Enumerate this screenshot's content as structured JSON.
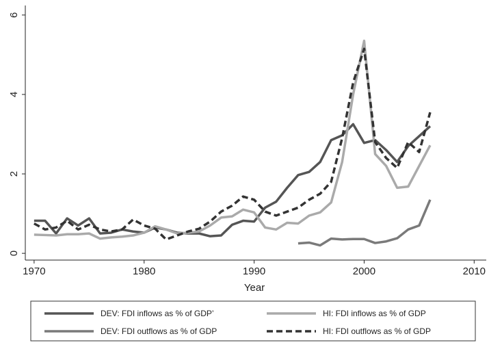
{
  "chart_data": {
    "type": "line",
    "x_label": "Year",
    "x": [
      1970,
      1971,
      1972,
      1973,
      1974,
      1975,
      1976,
      1977,
      1978,
      1979,
      1980,
      1981,
      1982,
      1983,
      1984,
      1985,
      1986,
      1987,
      1988,
      1989,
      1990,
      1991,
      1992,
      1993,
      1994,
      1995,
      1996,
      1997,
      1998,
      1999,
      2000,
      2001,
      2002,
      2003,
      2004,
      2005,
      2006
    ],
    "series": [
      {
        "name": "DEV: FDI inflows as % of GDP’",
        "color": "#555555",
        "dash": false,
        "values": [
          0.82,
          0.82,
          0.5,
          0.88,
          0.7,
          0.88,
          0.5,
          0.52,
          0.6,
          0.55,
          0.52,
          0.65,
          0.6,
          0.52,
          0.5,
          0.5,
          0.43,
          0.45,
          0.72,
          0.82,
          0.8,
          1.15,
          1.3,
          1.65,
          1.97,
          2.05,
          2.3,
          2.85,
          2.97,
          3.25,
          2.78,
          2.85,
          2.6,
          2.3,
          2.7,
          2.95,
          3.2
        ]
      },
      {
        "name": "HI: FDI inflows as % of GDP",
        "color": "#aaaaaa",
        "dash": false,
        "values": [
          0.47,
          0.46,
          0.45,
          0.48,
          0.48,
          0.5,
          0.37,
          0.4,
          0.42,
          0.45,
          0.52,
          0.68,
          0.6,
          0.5,
          0.52,
          0.55,
          0.7,
          0.9,
          0.93,
          1.1,
          1.03,
          0.65,
          0.6,
          0.77,
          0.75,
          0.95,
          1.03,
          1.28,
          2.3,
          4.0,
          5.35,
          2.5,
          2.2,
          1.65,
          1.68,
          2.2,
          2.72
        ]
      },
      {
        "name": "DEV: FDI outflows as % of GDP",
        "color": "#7a7a7a",
        "dash": false,
        "values": [
          null,
          null,
          null,
          null,
          null,
          null,
          null,
          null,
          null,
          null,
          null,
          null,
          null,
          null,
          null,
          null,
          null,
          null,
          null,
          null,
          null,
          null,
          null,
          null,
          0.25,
          0.27,
          0.2,
          0.37,
          0.35,
          0.36,
          0.36,
          0.26,
          0.3,
          0.38,
          0.6,
          0.7,
          1.35
        ]
      },
      {
        "name": "HI: FDI outflows as % of GDP",
        "color": "#333333",
        "dash": true,
        "values": [
          0.75,
          0.6,
          0.65,
          0.82,
          0.6,
          0.72,
          0.6,
          0.55,
          0.6,
          0.85,
          0.7,
          0.62,
          0.35,
          0.45,
          0.55,
          0.62,
          0.8,
          1.05,
          1.2,
          1.43,
          1.35,
          1.05,
          0.95,
          1.05,
          1.15,
          1.35,
          1.5,
          1.8,
          2.9,
          4.3,
          5.15,
          2.8,
          2.4,
          2.15,
          2.8,
          2.55,
          3.55
        ]
      }
    ],
    "xlim": [
      1969.2,
      2011.1
    ],
    "xticks": [
      1970,
      1980,
      1990,
      2000,
      2010
    ],
    "ylim": [
      -0.17,
      6.24
    ],
    "yticks": [
      0,
      2,
      4,
      6
    ],
    "grid": false,
    "legend": "bottom"
  }
}
